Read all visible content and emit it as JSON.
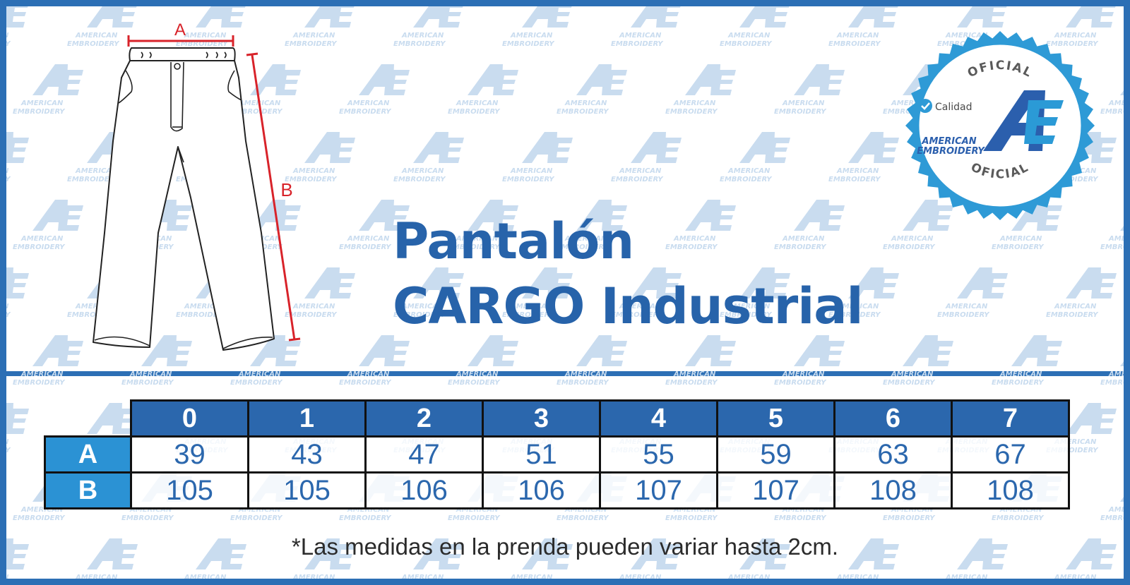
{
  "brand": {
    "name_line1": "AMERICAN",
    "name_line2": "EMBROIDERY",
    "monogram": "AE"
  },
  "colors": {
    "frame": "#2c6fb5",
    "title": "#2763aa",
    "header_fill": "#2b67ad",
    "row_label_fill": "#2b92d4",
    "measure_line": "#d8232a",
    "watermark": "#c9dcef"
  },
  "diagram": {
    "label_a": "A",
    "label_b": "B"
  },
  "seal": {
    "top_text": "OFICIAL",
    "bottom_text": "OFICIAL",
    "quality": "Calidad",
    "brand_line1": "AMERICAN",
    "brand_line2": "EMBROIDERY",
    "monogram": "AE"
  },
  "title": {
    "line1": "Pantalón",
    "line2": "CARGO Industrial"
  },
  "size_table": {
    "sizes": [
      "0",
      "1",
      "2",
      "3",
      "4",
      "5",
      "6",
      "7"
    ],
    "rows": [
      {
        "label": "A",
        "values": [
          "39",
          "43",
          "47",
          "51",
          "55",
          "59",
          "63",
          "67"
        ]
      },
      {
        "label": "B",
        "values": [
          "105",
          "105",
          "106",
          "106",
          "107",
          "107",
          "108",
          "108"
        ]
      }
    ]
  },
  "note": "*Las medidas en la prenda pueden variar hasta 2cm."
}
